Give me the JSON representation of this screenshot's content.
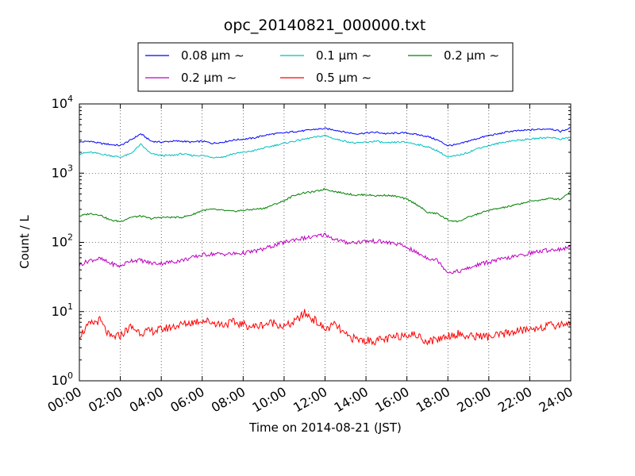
{
  "chart_data": {
    "type": "line",
    "title": "opc_20140821_000000.txt",
    "xlabel": "Time on 2014-08-21 (JST)",
    "ylabel": "Count / L",
    "yscale": "log",
    "ylim": [
      1,
      10000
    ],
    "y_ticks": [
      {
        "value": 1,
        "base": "10",
        "exp": "0"
      },
      {
        "value": 10,
        "base": "10",
        "exp": "1"
      },
      {
        "value": 100,
        "base": "10",
        "exp": "2"
      },
      {
        "value": 1000,
        "base": "10",
        "exp": "3"
      },
      {
        "value": 10000,
        "base": "10",
        "exp": "4"
      }
    ],
    "x_ticks": [
      "00:00",
      "02:00",
      "04:00",
      "06:00",
      "08:00",
      "10:00",
      "12:00",
      "14:00",
      "16:00",
      "18:00",
      "20:00",
      "22:00",
      "24:00"
    ],
    "grid": true,
    "legend_position": "top-center",
    "x": [
      "00:00",
      "00:30",
      "01:00",
      "01:30",
      "02:00",
      "02:30",
      "03:00",
      "03:30",
      "04:00",
      "04:30",
      "05:00",
      "05:30",
      "06:00",
      "06:30",
      "07:00",
      "07:30",
      "08:00",
      "08:30",
      "09:00",
      "09:30",
      "10:00",
      "10:30",
      "11:00",
      "11:30",
      "12:00",
      "12:30",
      "13:00",
      "13:30",
      "14:00",
      "14:30",
      "15:00",
      "15:30",
      "16:00",
      "16:30",
      "17:00",
      "17:30",
      "18:00",
      "18:30",
      "19:00",
      "19:30",
      "20:00",
      "20:30",
      "21:00",
      "21:30",
      "22:00",
      "22:30",
      "23:00",
      "23:30",
      "24:00"
    ],
    "series": [
      {
        "name": "0.08 μm ∼",
        "color": "#0000ff",
        "values": [
          2800,
          2900,
          2700,
          2600,
          2500,
          3000,
          3700,
          2900,
          2800,
          2900,
          2900,
          2800,
          2900,
          2700,
          2800,
          3000,
          3100,
          3200,
          3500,
          3700,
          3800,
          4000,
          4100,
          4300,
          4400,
          4200,
          3900,
          3700,
          3800,
          3900,
          3700,
          3800,
          3800,
          3600,
          3400,
          3000,
          2500,
          2600,
          2900,
          3200,
          3500,
          3700,
          4000,
          4100,
          4200,
          4300,
          4400,
          4000,
          4500
        ]
      },
      {
        "name": "0.1 μm ∼",
        "color": "#00bfbf",
        "values": [
          1900,
          2000,
          1900,
          1800,
          1700,
          1900,
          2600,
          1900,
          1800,
          1800,
          1900,
          1800,
          1800,
          1700,
          1700,
          1900,
          2000,
          2100,
          2300,
          2500,
          2700,
          2900,
          3100,
          3300,
          3500,
          3100,
          2900,
          2700,
          2800,
          2900,
          2700,
          2800,
          2800,
          2600,
          2400,
          2100,
          1700,
          1800,
          2000,
          2300,
          2500,
          2700,
          2900,
          3000,
          3100,
          3200,
          3300,
          3100,
          3300
        ]
      },
      {
        "name": "0.2 μm ∼",
        "color": "#008000",
        "values": [
          240,
          260,
          250,
          210,
          200,
          230,
          240,
          220,
          230,
          230,
          230,
          250,
          290,
          300,
          290,
          280,
          290,
          300,
          310,
          350,
          400,
          480,
          520,
          540,
          590,
          540,
          510,
          480,
          490,
          470,
          480,
          460,
          420,
          350,
          270,
          260,
          210,
          200,
          230,
          260,
          290,
          310,
          330,
          360,
          390,
          410,
          430,
          420,
          550
        ]
      },
      {
        "name": "0.2 μm ∼",
        "color": "#bf00bf",
        "values": [
          47,
          55,
          58,
          50,
          45,
          55,
          55,
          50,
          50,
          52,
          55,
          60,
          66,
          68,
          68,
          68,
          70,
          74,
          80,
          90,
          100,
          110,
          115,
          120,
          130,
          110,
          100,
          100,
          104,
          104,
          100,
          95,
          85,
          70,
          60,
          55,
          37,
          38,
          42,
          48,
          52,
          56,
          60,
          64,
          70,
          74,
          78,
          80,
          85
        ]
      },
      {
        "name": "0.5 μm ∼",
        "color": "#ff0000",
        "values": [
          4.5,
          6.5,
          7.5,
          4.2,
          4.5,
          6.0,
          5.0,
          5.2,
          5.5,
          6.0,
          6.5,
          7.0,
          7.5,
          7.0,
          6.5,
          7.0,
          6.5,
          6.0,
          6.5,
          7.0,
          6.0,
          7.0,
          9.5,
          7.5,
          5.5,
          6.5,
          4.5,
          4.0,
          3.8,
          3.8,
          4.0,
          4.3,
          4.8,
          4.5,
          3.7,
          4.0,
          4.5,
          4.8,
          4.3,
          4.5,
          4.3,
          4.5,
          5.0,
          5.3,
          5.5,
          6.0,
          6.2,
          6.5,
          7.0
        ]
      }
    ]
  }
}
